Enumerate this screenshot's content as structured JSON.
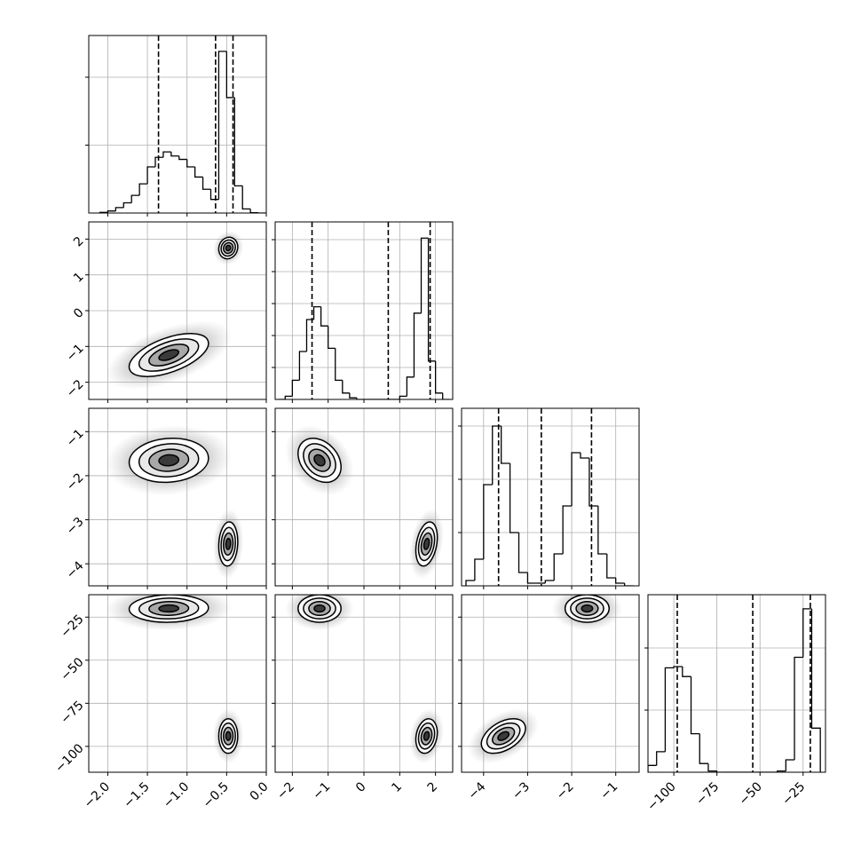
{
  "chart_data": {
    "type": "corner",
    "grid": true,
    "color": "#000000",
    "contour_sigmas": [
      0.5,
      1,
      1.5,
      2
    ],
    "params": [
      {
        "range": [
          -2.24,
          0.0
        ],
        "ticks": [
          {
            "value": -2.0,
            "label": "−2.0"
          },
          {
            "value": -1.5,
            "label": "−1.5"
          },
          {
            "value": -1.0,
            "label": "−1.0"
          },
          {
            "value": -0.5,
            "label": "−0.5"
          },
          {
            "value": 0.0,
            "label": "0.0"
          }
        ],
        "quantiles": [
          -1.36,
          -0.64,
          -0.42
        ],
        "hist": {
          "bins": [
            -2.1,
            -2.0,
            -1.9,
            -1.8,
            -1.7,
            -1.6,
            -1.5,
            -1.4,
            -1.3,
            -1.2,
            -1.1,
            -1.0,
            -0.9,
            -0.8,
            -0.7,
            -0.6,
            -0.5,
            -0.4,
            -0.3,
            -0.2,
            -0.1,
            0.0
          ],
          "counts": [
            10,
            30,
            80,
            150,
            260,
            430,
            680,
            820,
            900,
            840,
            790,
            680,
            530,
            350,
            200,
            2380,
            1700,
            400,
            60,
            5,
            0
          ],
          "ylim": [
            0,
            2614
          ],
          "yticks": [
            1000,
            2000
          ]
        }
      },
      {
        "range": [
          -2.48,
          2.48
        ],
        "ticks": [
          {
            "value": -2,
            "label": "−2"
          },
          {
            "value": -1,
            "label": "−1"
          },
          0,
          1,
          2
        ],
        "quantiles": [
          -1.45,
          0.68,
          1.85
        ],
        "hist": {
          "bins": [
            -2.4,
            -2.2,
            -2.0,
            -1.8,
            -1.6,
            -1.4,
            -1.2,
            -1.0,
            -0.8,
            -0.6,
            -0.4,
            -0.2,
            0.0,
            0.2,
            0.4,
            0.6,
            0.8,
            1.0,
            1.2,
            1.4,
            1.6,
            1.8,
            2.0,
            2.2,
            2.4
          ],
          "counts": [
            0,
            100,
            600,
            1500,
            2500,
            2900,
            2300,
            1600,
            600,
            200,
            50,
            0,
            0,
            0,
            0,
            0,
            0,
            100,
            700,
            2700,
            5050,
            1200,
            200,
            0
          ],
          "ylim": [
            0,
            5556
          ],
          "yticks": [
            1000,
            2000,
            3000,
            4000,
            5000
          ]
        }
      },
      {
        "range": [
          -4.5,
          -0.47
        ],
        "ticks": [
          {
            "value": -4,
            "label": "−4"
          },
          {
            "value": -3,
            "label": "−3"
          },
          {
            "value": -2,
            "label": "−2"
          },
          {
            "value": -1,
            "label": "−1"
          }
        ],
        "quantiles": [
          -3.66,
          -2.69,
          -1.55
        ],
        "hist": {
          "bins": [
            -4.4,
            -4.2,
            -4.0,
            -3.8,
            -3.6,
            -3.4,
            -3.2,
            -3.0,
            -2.8,
            -2.6,
            -2.4,
            -2.2,
            -2.0,
            -1.8,
            -1.6,
            -1.4,
            -1.2,
            -1.0,
            -0.8,
            -0.6
          ],
          "counts": [
            100,
            500,
            1900,
            3000,
            2300,
            1000,
            250,
            50,
            50,
            100,
            600,
            1500,
            2500,
            2400,
            1500,
            600,
            150,
            50,
            0
          ],
          "ylim": [
            0,
            3333
          ],
          "yticks": [
            1000,
            2000,
            3000
          ]
        }
      },
      {
        "range": [
          -115,
          -12
        ],
        "ticks": [
          {
            "value": -100,
            "label": "−100"
          },
          {
            "value": -75,
            "label": "−75"
          },
          {
            "value": -50,
            "label": "−50"
          },
          {
            "value": -25,
            "label": "−25"
          }
        ],
        "quantiles": [
          -98,
          -54.2,
          -20.8
        ],
        "hist": {
          "bins": [
            -115,
            -110,
            -105,
            -100,
            -95,
            -90,
            -85,
            -80,
            -75,
            -70,
            -65,
            -60,
            -55,
            -50,
            -45,
            -40,
            -35,
            -30,
            -25,
            -20,
            -15
          ],
          "counts": [
            110,
            330,
            1680,
            1700,
            1540,
            620,
            140,
            20,
            0,
            0,
            0,
            0,
            0,
            0,
            0,
            20,
            200,
            1850,
            2630,
            710
          ],
          "ylim": [
            0,
            2857
          ],
          "yticks": [
            1000,
            2000
          ]
        }
      }
    ],
    "components": [
      {
        "mean": [
          -1.23,
          -1.24,
          -1.65,
          -20
        ],
        "sd": [
          0.25,
          0.3,
          0.25,
          4
        ],
        "rho": [
          0.55,
          0.1,
          0.05,
          -0.3,
          0,
          0
        ]
      },
      {
        "mean": [
          -0.48,
          1.75,
          -3.55,
          -94
        ],
        "sd": [
          0.06,
          0.15,
          0.25,
          5
        ],
        "rho": [
          0.1,
          0.1,
          0,
          0.3,
          0.2,
          0.45
        ]
      }
    ]
  }
}
